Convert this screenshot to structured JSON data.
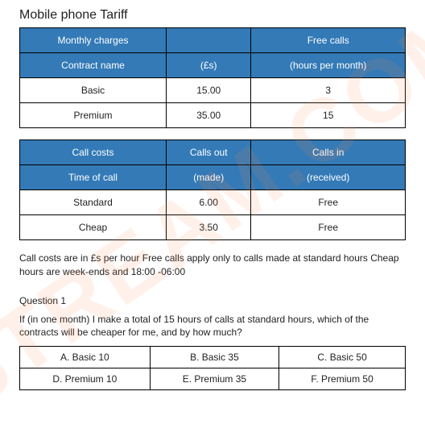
{
  "title": "Mobile phone Tariff",
  "colors": {
    "header": "#337ab7",
    "headerText": "#ffffff",
    "border": "#000000"
  },
  "tariffTable": {
    "type": "table",
    "columns": [
      "",
      "",
      ""
    ],
    "headerRow1": [
      "Monthly charges",
      "",
      "Free calls"
    ],
    "headerRow2": [
      "Contract name",
      "(£s)",
      "(hours per month)"
    ],
    "rows": [
      [
        "Basic",
        "15.00",
        "3"
      ],
      [
        "Premium",
        "35.00",
        "15"
      ]
    ]
  },
  "costTable": {
    "type": "table",
    "headerRow1": [
      "Call costs",
      "Calls out",
      "Calls in"
    ],
    "headerRow2": [
      "Time of call",
      "(made)",
      "(received)"
    ],
    "rows": [
      [
        "Standard",
        "6.00",
        "Free"
      ],
      [
        "Cheap",
        "3.50",
        "Free"
      ]
    ]
  },
  "note": "Call costs are in £s per hour Free calls apply only to calls made at standard hours Cheap hours are week-ends and 18:00 -06:00",
  "question": {
    "label": "Question 1",
    "text": "If (in one month) I make a total of 15 hours of calls at standard hours, which of the contracts will be cheaper for me, and by how much?",
    "options": [
      [
        "A. Basic 10",
        "B. Basic 35",
        "C. Basic 50"
      ],
      [
        "D. Premium 10",
        "E. Premium 35",
        "F. Premium 50"
      ]
    ]
  }
}
